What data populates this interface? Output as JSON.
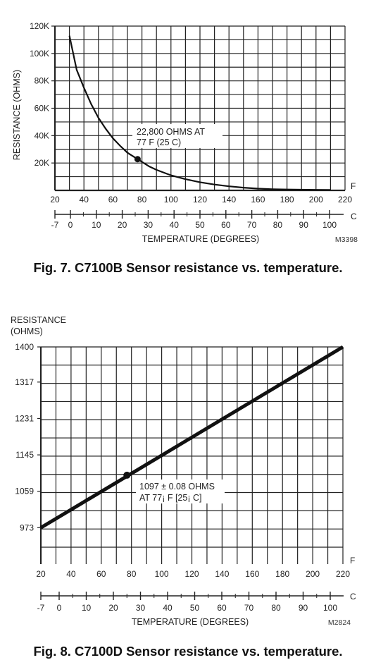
{
  "chart_data": [
    {
      "type": "line",
      "caption": "Fig. 7. C7100B Sensor resistance vs. temperature.",
      "ylabel": "RESISTANCE (OHMS)",
      "xlabel": "TEMPERATURE (DEGREES)",
      "code": "M3398",
      "x_unit": "F",
      "c_unit": "C",
      "xlim": [
        20,
        220
      ],
      "ylim": [
        0,
        120000
      ],
      "x_ticks": [
        20,
        40,
        60,
        80,
        100,
        120,
        140,
        160,
        180,
        200,
        220
      ],
      "y_ticks": [
        20000,
        40000,
        60000,
        80000,
        100000,
        120000
      ],
      "y_tick_labels": [
        "20K",
        "40K",
        "60K",
        "80K",
        "100K",
        "120K"
      ],
      "c_ticks": [
        -7,
        0,
        10,
        20,
        30,
        40,
        50,
        60,
        70,
        80,
        90,
        100
      ],
      "series": [
        {
          "x": [
            30,
            35,
            40,
            45,
            50,
            55,
            60,
            65,
            70,
            77,
            85,
            90,
            100,
            110,
            120,
            130,
            140,
            150,
            160,
            170,
            180,
            190,
            200,
            210
          ],
          "y": [
            113000,
            88000,
            75000,
            63000,
            53000,
            45000,
            38000,
            32500,
            27500,
            22800,
            17500,
            15000,
            11000,
            8200,
            6000,
            4300,
            3000,
            2000,
            1300,
            900,
            650,
            500,
            400,
            350
          ]
        }
      ],
      "marker": {
        "x": 77,
        "y": 22800
      },
      "annotation": [
        "22,800 OHMS AT",
        "77  F (25  C)"
      ]
    },
    {
      "type": "line",
      "caption": "Fig. 8. C7100D Sensor resistance vs. temperature.",
      "ylabel_lines": [
        "RESISTANCE",
        "(OHMS)"
      ],
      "xlabel": "TEMPERATURE (DEGREES)",
      "code": "M2824",
      "x_unit": "F",
      "c_unit": "C",
      "xlim": [
        20,
        220
      ],
      "ylim": [
        887,
        1400
      ],
      "x_ticks": [
        20,
        40,
        60,
        80,
        100,
        120,
        140,
        160,
        180,
        200,
        220
      ],
      "y_ticks": [
        973,
        1059,
        1145,
        1231,
        1317,
        1400
      ],
      "y_tick_labels": [
        "973",
        "1059",
        "1145",
        "1231",
        "1317",
        "1400"
      ],
      "c_ticks": [
        -7,
        0,
        10,
        20,
        30,
        40,
        50,
        60,
        70,
        80,
        90,
        100
      ],
      "series": [
        {
          "x": [
            20,
            220
          ],
          "y": [
            973,
            1400
          ]
        }
      ],
      "marker": {
        "x": 77,
        "y": 1097
      },
      "annotation": [
        "1097 ± 0.08 OHMS",
        "AT 77¡ F [25¡ C]"
      ]
    }
  ]
}
